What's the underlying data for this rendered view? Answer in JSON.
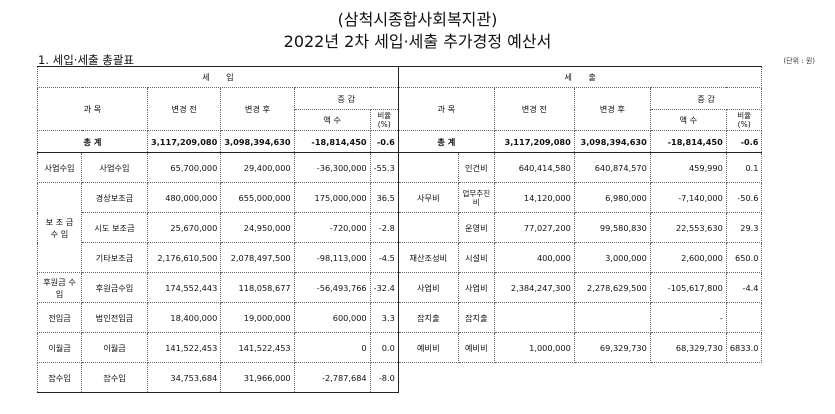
{
  "title": "(삼척시종합사회복지관)",
  "subtitle": "2022년 2차 세입·세출 추가경정 예산서",
  "section": "1. 세입·세출 총괄표",
  "unit": "(단위 : 원)",
  "headers": {
    "revenue": "세　　입",
    "expense": "세　　출",
    "subject": "과 목",
    "before": "변경 전",
    "after": "변경 후",
    "change": "증 감",
    "amount": "액 수",
    "ratio": "비율 (%)"
  },
  "total": {
    "label": "총 계",
    "rev_before": "3,117,209,080",
    "rev_after": "3,098,394,630",
    "rev_amount": "-18,814,450",
    "rev_ratio": "-0.6",
    "exp_before": "3,117,209,080",
    "exp_after": "3,098,394,630",
    "exp_amount": "-18,814,450",
    "exp_ratio": "-0.6"
  },
  "revenue_rows": [
    {
      "group": "사업수입",
      "item": "사업수입",
      "before": "65,700,000",
      "after": "29,400,000",
      "amount": "-36,300,000",
      "ratio": "-55.3"
    },
    {
      "group": "보 조 금 수 입",
      "item": "경상보조금",
      "before": "480,000,000",
      "after": "655,000,000",
      "amount": "175,000,000",
      "ratio": "36.5"
    },
    {
      "group": "",
      "item": "시도 보조금",
      "before": "25,670,000",
      "after": "24,950,000",
      "amount": "-720,000",
      "ratio": "-2.8"
    },
    {
      "group": "",
      "item": "기타보조금",
      "before": "2,176,610,500",
      "after": "2,078,497,500",
      "amount": "-98,113,000",
      "ratio": "-4.5"
    },
    {
      "group": "후원금 수 입",
      "item": "후원금수입",
      "before": "174,552,443",
      "after": "118,058,677",
      "amount": "-56,493,766",
      "ratio": "-32.4"
    },
    {
      "group": "전입금",
      "item": "법인전입금",
      "before": "18,400,000",
      "after": "19,000,000",
      "amount": "600,000",
      "ratio": "3.3"
    },
    {
      "group": "이월금",
      "item": "이월금",
      "before": "141,522,453",
      "after": "141,522,453",
      "amount": "0",
      "ratio": "0.0"
    },
    {
      "group": "잡수입",
      "item": "잡수입",
      "before": "34,753,684",
      "after": "31,966,000",
      "amount": "-2,787,684",
      "ratio": "-8.0"
    }
  ],
  "expense_rows": [
    {
      "group": "",
      "item": "인건비",
      "before": "640,414,580",
      "after": "640,874,570",
      "amount": "459,990",
      "ratio": "0.1"
    },
    {
      "group": "사무비",
      "item": "업무추진비",
      "before": "14,120,000",
      "after": "6,980,000",
      "amount": "-7,140,000",
      "ratio": "-50.6"
    },
    {
      "group": "",
      "item": "운영비",
      "before": "77,027,200",
      "after": "99,580,830",
      "amount": "22,553,630",
      "ratio": "29.3"
    },
    {
      "group": "재산조성비",
      "item": "시설비",
      "before": "400,000",
      "after": "3,000,000",
      "amount": "2,600,000",
      "ratio": "650.0"
    },
    {
      "group": "사업비",
      "item": "사업비",
      "before": "2,384,247,300",
      "after": "2,278,629,500",
      "amount": "-105,617,800",
      "ratio": "-4.4"
    },
    {
      "group": "잡지출",
      "item": "잡지출",
      "before": "",
      "after": "",
      "amount": "-",
      "ratio": ""
    },
    {
      "group": "예비비",
      "item": "예비비",
      "before": "1,000,000",
      "after": "69,329,730",
      "amount": "68,329,730",
      "ratio": "6833.0"
    }
  ]
}
